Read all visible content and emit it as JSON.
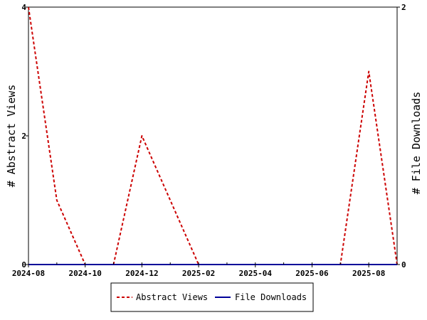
{
  "chart_data": {
    "type": "line",
    "title": "",
    "x_tick_labels": [
      "2024-08",
      "2024-10",
      "2024-12",
      "2025-02",
      "2025-04",
      "2025-06",
      "2025-08"
    ],
    "x": [
      "2024-08",
      "2024-09",
      "2024-10",
      "2024-11",
      "2024-12",
      "2025-01",
      "2025-02",
      "2025-03",
      "2025-04",
      "2025-05",
      "2025-06",
      "2025-07",
      "2025-08",
      "2025-09"
    ],
    "ylabel_left": "# Abstract Views",
    "ylabel_right": "# File Downloads",
    "ylim_left": [
      0,
      4
    ],
    "ylim_right": [
      0,
      2
    ],
    "y_ticks_left": [
      "0",
      "2",
      "4"
    ],
    "y_ticks_right": [
      "0",
      "2"
    ],
    "grid": false,
    "legend_position": "bottom",
    "series": [
      {
        "name": "Abstract Views",
        "axis": "left",
        "color": "#cc0000",
        "style": "dashed",
        "values": [
          4,
          1,
          0,
          0,
          2,
          1,
          0,
          0,
          0,
          0,
          0,
          0,
          3,
          0
        ]
      },
      {
        "name": "File Downloads",
        "axis": "right",
        "color": "#000099",
        "style": "solid",
        "values": [
          0,
          0,
          0,
          0,
          0,
          0,
          0,
          0,
          0,
          0,
          0,
          0,
          0,
          0
        ]
      }
    ]
  }
}
